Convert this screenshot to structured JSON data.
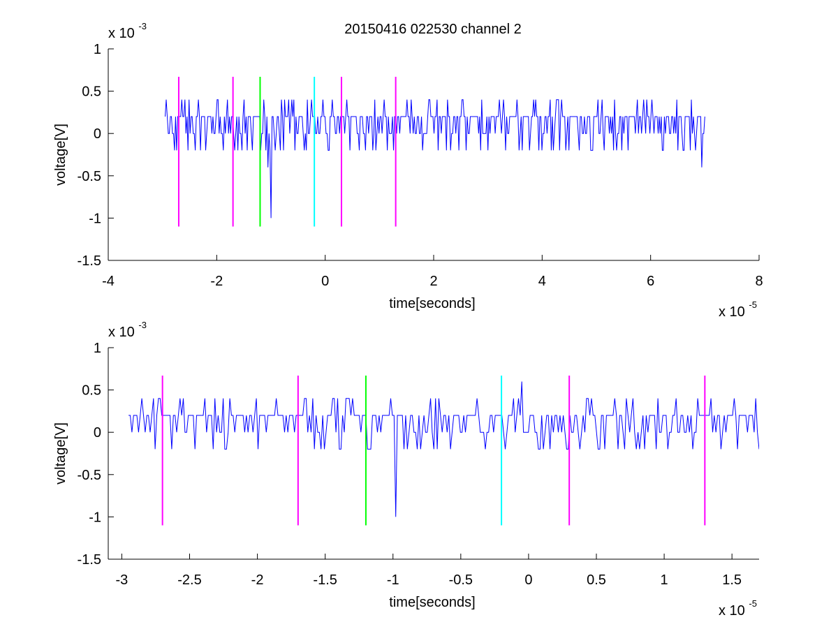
{
  "figure_title": "20150416 022530 channel 2",
  "chart_data": [
    {
      "type": "line",
      "title": "20150416 022530 channel 2",
      "xlabel": "time[seconds]",
      "ylabel": "voltage[V]",
      "x_exponent_label": "x 10",
      "x_exponent": "-5",
      "y_exponent_label": "x 10",
      "y_exponent": "-3",
      "xlim": [
        -4,
        8
      ],
      "ylim": [
        -1.5,
        1
      ],
      "x_ticks": [
        -4,
        -2,
        0,
        2,
        4,
        6,
        8
      ],
      "x_tick_labels": [
        "-4",
        "-2",
        "0",
        "2",
        "4",
        "6",
        "8"
      ],
      "y_ticks": [
        -1.5,
        -1,
        -0.5,
        0,
        0.5,
        1
      ],
      "y_tick_labels": [
        "-1.5",
        "-1",
        "-0.5",
        "0",
        "0.5",
        "1"
      ],
      "series": [
        {
          "color": "#0000ff",
          "x_range": [
            -2.95,
            7.0
          ],
          "typical_values": [
            0,
            0.2,
            0.4,
            -0.2
          ],
          "spikes": [
            {
              "x": -1.0,
              "y": -1.0
            },
            {
              "x": -1.05,
              "y": -0.4
            },
            {
              "x": 6.95,
              "y": -0.4
            }
          ]
        }
      ],
      "markers": [
        {
          "x": -2.7,
          "color": "#ff00ff"
        },
        {
          "x": -1.7,
          "color": "#ff00ff"
        },
        {
          "x": -1.2,
          "color": "#00ff00"
        },
        {
          "x": -0.2,
          "color": "#00ffff"
        },
        {
          "x": 0.3,
          "color": "#ff00ff"
        },
        {
          "x": 1.3,
          "color": "#ff00ff"
        }
      ],
      "marker_y_range": [
        -1.1,
        0.67
      ]
    },
    {
      "type": "line",
      "title": "",
      "xlabel": "time[seconds]",
      "ylabel": "voltage[V]",
      "x_exponent_label": "x 10",
      "x_exponent": "-5",
      "y_exponent_label": "x 10",
      "y_exponent": "-3",
      "xlim": [
        -3.1,
        1.7
      ],
      "ylim": [
        -1.5,
        1
      ],
      "x_ticks": [
        -3,
        -2.5,
        -2,
        -1.5,
        -1,
        -0.5,
        0,
        0.5,
        1,
        1.5
      ],
      "x_tick_labels": [
        "-3",
        "-2.5",
        "-2",
        "-1.5",
        "-1",
        "-0.5",
        "0",
        "0.5",
        "1",
        "1.5"
      ],
      "y_ticks": [
        -1.5,
        -1,
        -0.5,
        0,
        0.5,
        1
      ],
      "y_tick_labels": [
        "-1.5",
        "-1",
        "-0.5",
        "0",
        "0.5",
        "1"
      ],
      "series": [
        {
          "color": "#0000ff",
          "x_range": [
            -2.95,
            1.7
          ],
          "typical_values": [
            0,
            0.2,
            0.4,
            -0.2
          ],
          "spikes": [
            {
              "x": -0.98,
              "y": -1.0
            },
            {
              "x": -0.05,
              "y": 0.6
            }
          ]
        }
      ],
      "markers": [
        {
          "x": -2.7,
          "color": "#ff00ff"
        },
        {
          "x": -1.7,
          "color": "#ff00ff"
        },
        {
          "x": -1.2,
          "color": "#00ff00"
        },
        {
          "x": -0.2,
          "color": "#00ffff"
        },
        {
          "x": 0.3,
          "color": "#ff00ff"
        },
        {
          "x": 1.3,
          "color": "#ff00ff"
        }
      ],
      "marker_y_range": [
        -1.1,
        0.67
      ]
    }
  ]
}
